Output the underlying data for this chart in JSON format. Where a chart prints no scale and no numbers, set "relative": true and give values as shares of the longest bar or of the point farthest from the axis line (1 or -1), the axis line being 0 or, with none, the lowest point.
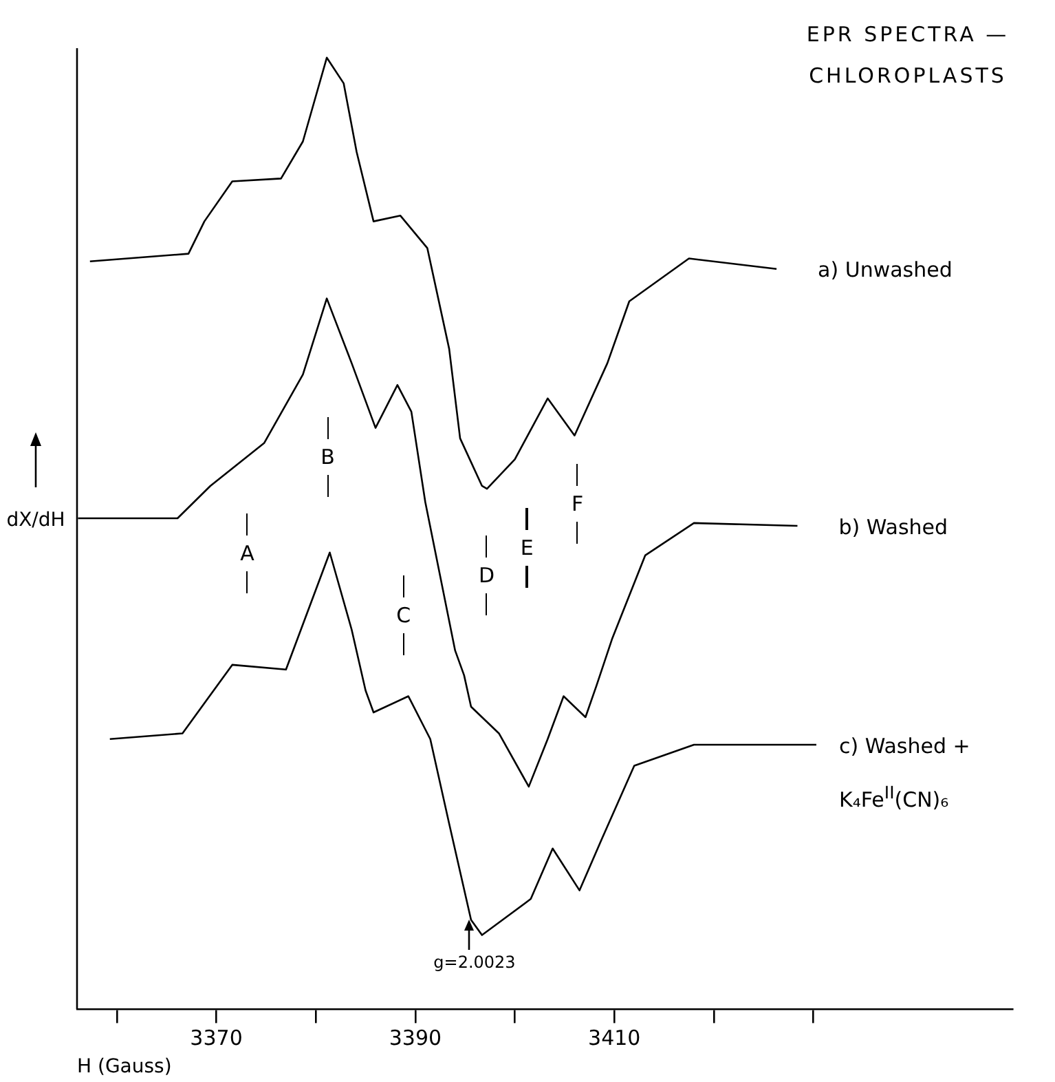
{
  "chart_data": {
    "type": "line",
    "title": "EPR SPECTRA — CHLOROPLASTS",
    "xlabel": "H (Gauss)",
    "ylabel": "dX/dH",
    "relative": true,
    "grid": false,
    "legend": false,
    "marker": "none",
    "line_style": "solid",
    "xlim": [
      3356,
      3450
    ],
    "xticks": [
      {
        "value": 3360,
        "label": null
      },
      3370,
      {
        "value": 3380,
        "label": null
      },
      3390,
      {
        "value": 3400,
        "label": null
      },
      3410,
      {
        "value": 3420,
        "label": null
      },
      {
        "value": 3430,
        "label": null
      }
    ],
    "series": [
      {
        "name": "a) Unwashed",
        "color": "#000000",
        "x": [
          3357.3,
          3367.2,
          3368.8,
          3371.6,
          3376.5,
          3378.7,
          3381.1,
          3382.8,
          3384.1,
          3385.8,
          3388.5,
          3391.2,
          3393.4,
          3394.5,
          3396.7,
          3397.2,
          3400,
          3403.3,
          3406,
          3409.3,
          3411.5,
          3417.5,
          3426.3
        ],
        "values": [
          0.786,
          0.794,
          0.828,
          0.87,
          0.873,
          0.912,
          1,
          0.973,
          0.901,
          0.828,
          0.834,
          0.8,
          0.694,
          0.6,
          0.55,
          0.547,
          0.578,
          0.642,
          0.603,
          0.679,
          0.744,
          0.789,
          0.778
        ]
      },
      {
        "name": "b) Washed",
        "color": "#000000",
        "x": [
          3356.1,
          3366.1,
          3369.4,
          3374.8,
          3378.7,
          3381.1,
          3383.6,
          3386,
          3388.2,
          3389.6,
          3391,
          3394,
          3394.9,
          3395.6,
          3398.4,
          3401.4,
          3403.3,
          3404.9,
          3407.1,
          3408.2,
          3409.8,
          3413.1,
          3418,
          3428.4
        ],
        "values": [
          0.516,
          0.516,
          0.55,
          0.595,
          0.667,
          0.747,
          0.679,
          0.611,
          0.656,
          0.628,
          0.533,
          0.377,
          0.351,
          0.318,
          0.29,
          0.234,
          0.284,
          0.329,
          0.307,
          0.34,
          0.39,
          0.477,
          0.511,
          0.508
        ]
      },
      {
        "name": "c) Washed + K₄Fe$^{II}$(CN)₆",
        "color": "#000000",
        "x": [
          3359.3,
          3366.6,
          3371.6,
          3377,
          3381.4,
          3383.6,
          3385,
          3385.8,
          3389.3,
          3391.5,
          3393.4,
          3395.6,
          3396.7,
          3398.9,
          3401.6,
          3403.8,
          3406.5,
          3408.7,
          3412,
          3418,
          3430.3
        ],
        "values": [
          0.284,
          0.29,
          0.362,
          0.357,
          0.48,
          0.399,
          0.335,
          0.312,
          0.329,
          0.284,
          0.195,
          0.094,
          0.078,
          0.095,
          0.116,
          0.169,
          0.125,
          0.178,
          0.256,
          0.278,
          0.278
        ]
      }
    ],
    "annotations": [
      "A",
      "B",
      "C",
      "D",
      "E",
      "F",
      "g=2.0023"
    ]
  }
}
